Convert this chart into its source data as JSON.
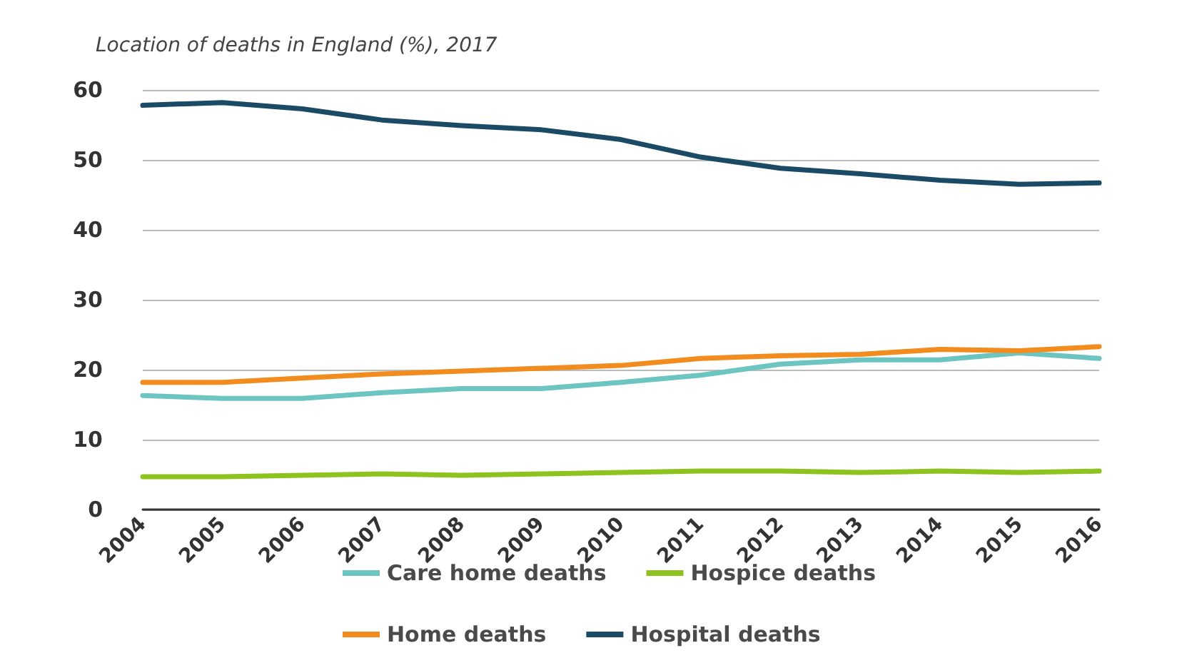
{
  "chart_data": {
    "type": "line",
    "title": "Location of deaths in England (%), 2017",
    "categories": [
      "2004",
      "2005",
      "2006",
      "2007",
      "2008",
      "2009",
      "2010",
      "2011",
      "2012",
      "2013",
      "2014",
      "2015",
      "2016"
    ],
    "series": [
      {
        "name": "Care home deaths",
        "color": "#6cc5c0",
        "values": [
          16.3,
          15.9,
          15.9,
          16.7,
          17.3,
          17.3,
          18.2,
          19.2,
          20.8,
          21.4,
          21.4,
          22.4,
          21.6
        ]
      },
      {
        "name": "Hospice deaths",
        "color": "#8dc21f",
        "values": [
          4.7,
          4.7,
          4.9,
          5.1,
          4.9,
          5.1,
          5.3,
          5.5,
          5.5,
          5.3,
          5.5,
          5.3,
          5.5
        ]
      },
      {
        "name": "Home deaths",
        "color": "#f28c1e",
        "values": [
          18.2,
          18.2,
          18.8,
          19.4,
          19.8,
          20.2,
          20.6,
          21.6,
          22.0,
          22.2,
          22.9,
          22.7,
          23.3
        ]
      },
      {
        "name": "Hospital deaths",
        "color": "#1b4a66",
        "values": [
          57.8,
          58.2,
          57.3,
          55.7,
          54.9,
          54.3,
          52.9,
          50.4,
          48.8,
          48.0,
          47.1,
          46.5,
          46.7
        ]
      }
    ],
    "ylim": [
      0,
      60
    ],
    "yticks": [
      0,
      10,
      20,
      30,
      40,
      50,
      60
    ],
    "grid": "y",
    "legend": "bottom",
    "marker": "none",
    "line_style": "solid"
  }
}
